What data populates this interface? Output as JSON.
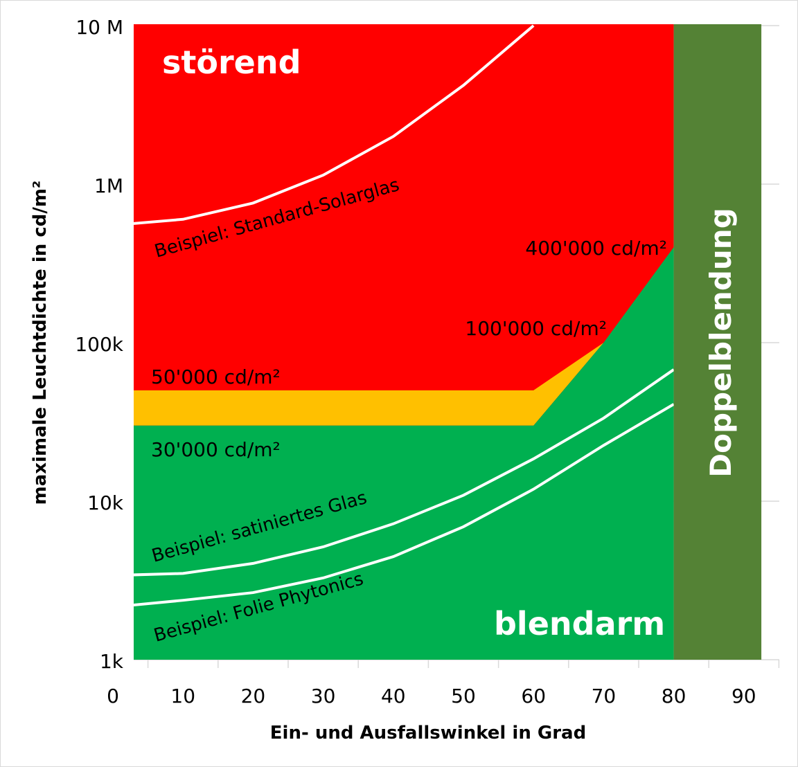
{
  "chart_data": {
    "type": "area",
    "xlabel": "Ein- und Ausfallswinkel in Grad",
    "ylabel": "maximale Leuchtdichte in cd/m²",
    "y_scale": "log",
    "ylim": [
      1000,
      10000000
    ],
    "xlim": [
      0,
      90
    ],
    "x_ticks": [
      "0",
      "10",
      "20",
      "30",
      "40",
      "50",
      "60",
      "70",
      "80",
      "90"
    ],
    "y_ticks": [
      {
        "value": 1000,
        "label": "1k"
      },
      {
        "value": 10000,
        "label": "10k"
      },
      {
        "value": 100000,
        "label": "100k"
      },
      {
        "value": 1000000,
        "label": "1M"
      },
      {
        "value": 10000000,
        "label": "10 M"
      }
    ],
    "grid": "horizontal",
    "regions": [
      {
        "name": "störend",
        "color": "#ff0000",
        "x": [
          0,
          80
        ],
        "lower": "yellow-upper",
        "upper": 10000000
      },
      {
        "color": "#ffc000",
        "x": [
          0,
          60,
          70
        ],
        "lower": [
          30000,
          30000,
          100000
        ],
        "upper": [
          50000,
          50000,
          100000
        ]
      },
      {
        "name": "blendarm",
        "color": "#00b050",
        "x": [
          0,
          60,
          70,
          80
        ],
        "upper": [
          30000,
          30000,
          100000,
          400000
        ]
      },
      {
        "name": "Doppelblendung",
        "color": "#548235",
        "x": [
          80,
          92.5
        ]
      }
    ],
    "series": [
      {
        "name": "Beispiel: Standard-Solarglas",
        "color": "#ffffff",
        "x": [
          0,
          10,
          20,
          30,
          40,
          50,
          60
        ],
        "values": [
          550000,
          600000,
          760000,
          1140000,
          2000000,
          4200000,
          10000000
        ]
      },
      {
        "name": "Beispiel: satiniertes Glas",
        "color": "#ffffff",
        "x": [
          0,
          10,
          20,
          30,
          40,
          50,
          60,
          70,
          80
        ],
        "values": [
          3400,
          3500,
          4050,
          5150,
          7200,
          10900,
          18500,
          33400,
          67600
        ]
      },
      {
        "name": "Beispiel: Folie Phytonics",
        "color": "#ffffff",
        "x": [
          0,
          10,
          20,
          30,
          40,
          50,
          60,
          70,
          80
        ],
        "values": [
          2150,
          2370,
          2650,
          3280,
          4470,
          6900,
          11900,
          22500,
          40900
        ]
      }
    ],
    "annotations": {
      "stoerend": "störend",
      "blendarm": "blendarm",
      "doppel": "Doppelblendung",
      "a50k": "50'000 cd/m²",
      "a30k": "30'000 cd/m²",
      "a100k": "100'000 cd/m²",
      "a400k": "400'000 cd/m²"
    }
  }
}
